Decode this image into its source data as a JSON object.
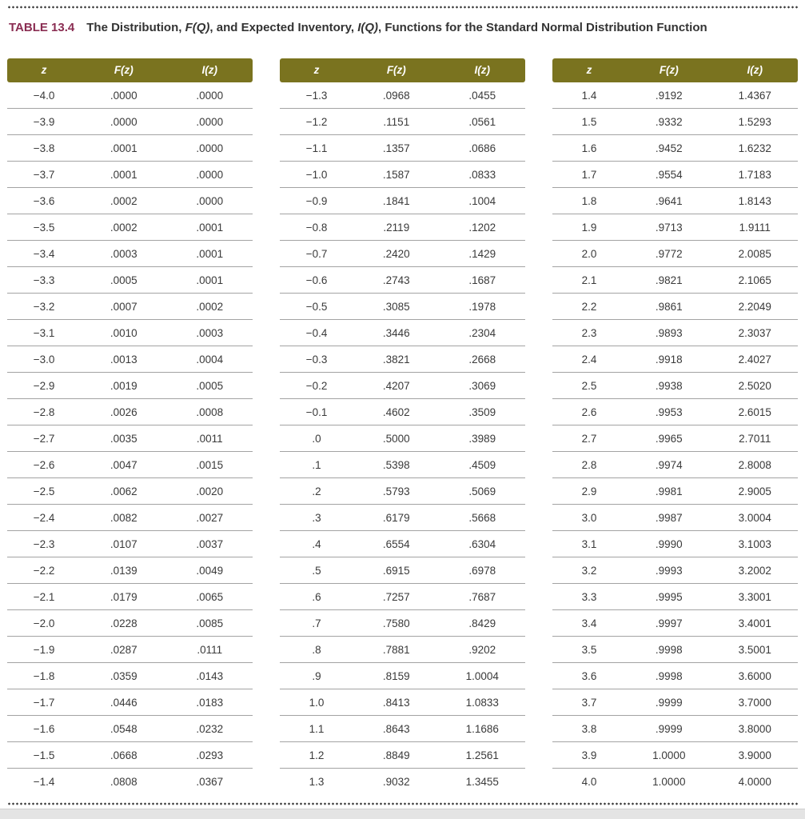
{
  "colors": {
    "header_bg": "#7a731f",
    "label_color": "#8a2d52"
  },
  "caption": {
    "label": "TABLE 13.4",
    "title_segments": [
      {
        "text": "The Distribution, ",
        "italic": false
      },
      {
        "text": "F(Q)",
        "italic": true
      },
      {
        "text": ", and Expected Inventory, ",
        "italic": false
      },
      {
        "text": "I(Q)",
        "italic": true
      },
      {
        "text": ", Functions for the Standard Normal Distribution Function",
        "italic": false
      }
    ]
  },
  "columns": [
    "z",
    "F(z)",
    "I(z)"
  ],
  "tables": [
    {
      "rows": [
        [
          "−4.0",
          ".0000",
          ".0000"
        ],
        [
          "−3.9",
          ".0000",
          ".0000"
        ],
        [
          "−3.8",
          ".0001",
          ".0000"
        ],
        [
          "−3.7",
          ".0001",
          ".0000"
        ],
        [
          "−3.6",
          ".0002",
          ".0000"
        ],
        [
          "−3.5",
          ".0002",
          ".0001"
        ],
        [
          "−3.4",
          ".0003",
          ".0001"
        ],
        [
          "−3.3",
          ".0005",
          ".0001"
        ],
        [
          "−3.2",
          ".0007",
          ".0002"
        ],
        [
          "−3.1",
          ".0010",
          ".0003"
        ],
        [
          "−3.0",
          ".0013",
          ".0004"
        ],
        [
          "−2.9",
          ".0019",
          ".0005"
        ],
        [
          "−2.8",
          ".0026",
          ".0008"
        ],
        [
          "−2.7",
          ".0035",
          ".0011"
        ],
        [
          "−2.6",
          ".0047",
          ".0015"
        ],
        [
          "−2.5",
          ".0062",
          ".0020"
        ],
        [
          "−2.4",
          ".0082",
          ".0027"
        ],
        [
          "−2.3",
          ".0107",
          ".0037"
        ],
        [
          "−2.2",
          ".0139",
          ".0049"
        ],
        [
          "−2.1",
          ".0179",
          ".0065"
        ],
        [
          "−2.0",
          ".0228",
          ".0085"
        ],
        [
          "−1.9",
          ".0287",
          ".0111"
        ],
        [
          "−1.8",
          ".0359",
          ".0143"
        ],
        [
          "−1.7",
          ".0446",
          ".0183"
        ],
        [
          "−1.6",
          ".0548",
          ".0232"
        ],
        [
          "−1.5",
          ".0668",
          ".0293"
        ],
        [
          "−1.4",
          ".0808",
          ".0367"
        ]
      ]
    },
    {
      "rows": [
        [
          "−1.3",
          ".0968",
          ".0455"
        ],
        [
          "−1.2",
          ".1151",
          ".0561"
        ],
        [
          "−1.1",
          ".1357",
          ".0686"
        ],
        [
          "−1.0",
          ".1587",
          ".0833"
        ],
        [
          "−0.9",
          ".1841",
          ".1004"
        ],
        [
          "−0.8",
          ".2119",
          ".1202"
        ],
        [
          "−0.7",
          ".2420",
          ".1429"
        ],
        [
          "−0.6",
          ".2743",
          ".1687"
        ],
        [
          "−0.5",
          ".3085",
          ".1978"
        ],
        [
          "−0.4",
          ".3446",
          ".2304"
        ],
        [
          "−0.3",
          ".3821",
          ".2668"
        ],
        [
          "−0.2",
          ".4207",
          ".3069"
        ],
        [
          "−0.1",
          ".4602",
          ".3509"
        ],
        [
          ".0",
          ".5000",
          ".3989"
        ],
        [
          ".1",
          ".5398",
          ".4509"
        ],
        [
          ".2",
          ".5793",
          ".5069"
        ],
        [
          ".3",
          ".6179",
          ".5668"
        ],
        [
          ".4",
          ".6554",
          ".6304"
        ],
        [
          ".5",
          ".6915",
          ".6978"
        ],
        [
          ".6",
          ".7257",
          ".7687"
        ],
        [
          ".7",
          ".7580",
          ".8429"
        ],
        [
          ".8",
          ".7881",
          ".9202"
        ],
        [
          ".9",
          ".8159",
          "1.0004"
        ],
        [
          "1.0",
          ".8413",
          "1.0833"
        ],
        [
          "1.1",
          ".8643",
          "1.1686"
        ],
        [
          "1.2",
          ".8849",
          "1.2561"
        ],
        [
          "1.3",
          ".9032",
          "1.3455"
        ]
      ]
    },
    {
      "rows": [
        [
          "1.4",
          ".9192",
          "1.4367"
        ],
        [
          "1.5",
          ".9332",
          "1.5293"
        ],
        [
          "1.6",
          ".9452",
          "1.6232"
        ],
        [
          "1.7",
          ".9554",
          "1.7183"
        ],
        [
          "1.8",
          ".9641",
          "1.8143"
        ],
        [
          "1.9",
          ".9713",
          "1.9111"
        ],
        [
          "2.0",
          ".9772",
          "2.0085"
        ],
        [
          "2.1",
          ".9821",
          "2.1065"
        ],
        [
          "2.2",
          ".9861",
          "2.2049"
        ],
        [
          "2.3",
          ".9893",
          "2.3037"
        ],
        [
          "2.4",
          ".9918",
          "2.4027"
        ],
        [
          "2.5",
          ".9938",
          "2.5020"
        ],
        [
          "2.6",
          ".9953",
          "2.6015"
        ],
        [
          "2.7",
          ".9965",
          "2.7011"
        ],
        [
          "2.8",
          ".9974",
          "2.8008"
        ],
        [
          "2.9",
          ".9981",
          "2.9005"
        ],
        [
          "3.0",
          ".9987",
          "3.0004"
        ],
        [
          "3.1",
          ".9990",
          "3.1003"
        ],
        [
          "3.2",
          ".9993",
          "3.2002"
        ],
        [
          "3.3",
          ".9995",
          "3.3001"
        ],
        [
          "3.4",
          ".9997",
          "3.4001"
        ],
        [
          "3.5",
          ".9998",
          "3.5001"
        ],
        [
          "3.6",
          ".9998",
          "3.6000"
        ],
        [
          "3.7",
          ".9999",
          "3.7000"
        ],
        [
          "3.8",
          ".9999",
          "3.8000"
        ],
        [
          "3.9",
          "1.0000",
          "3.9000"
        ],
        [
          "4.0",
          "1.0000",
          "4.0000"
        ]
      ]
    }
  ]
}
